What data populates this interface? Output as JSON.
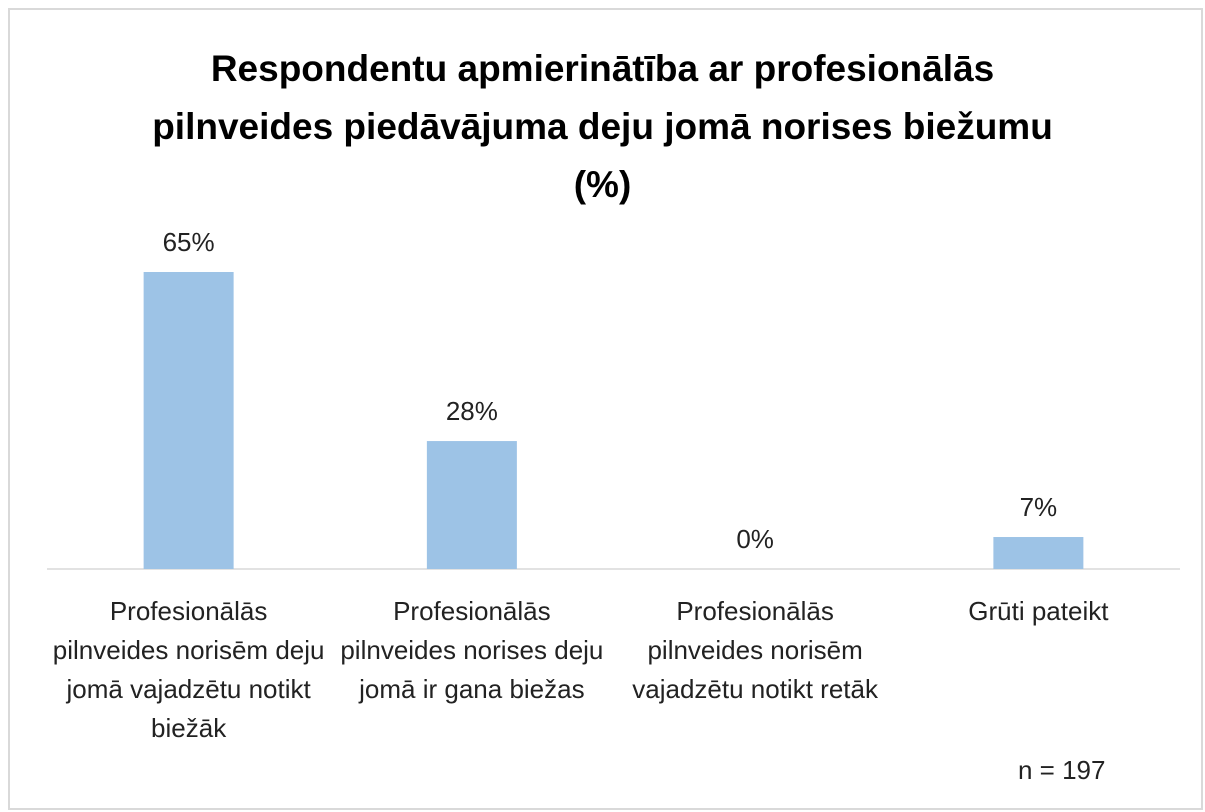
{
  "chart_data": {
    "type": "bar",
    "title": "Respondentu apmierinātība ar profesionālās pilnveides piedāvājuma deju jomā norises biežumu (%)",
    "categories": [
      "Profesionālās pilnveides norisēm deju jomā vajadzētu notikt biežāk",
      "Profesionālās pilnveides norises deju jomā ir gana biežas",
      "Profesionālās pilnveides norisēm vajadzētu notikt retāk",
      "Grūti pateikt"
    ],
    "values": [
      65,
      28,
      0,
      7
    ],
    "value_labels": [
      "65%",
      "28%",
      "0%",
      "7%"
    ],
    "color": "#9dc3e6",
    "annotation": "n = 197"
  }
}
